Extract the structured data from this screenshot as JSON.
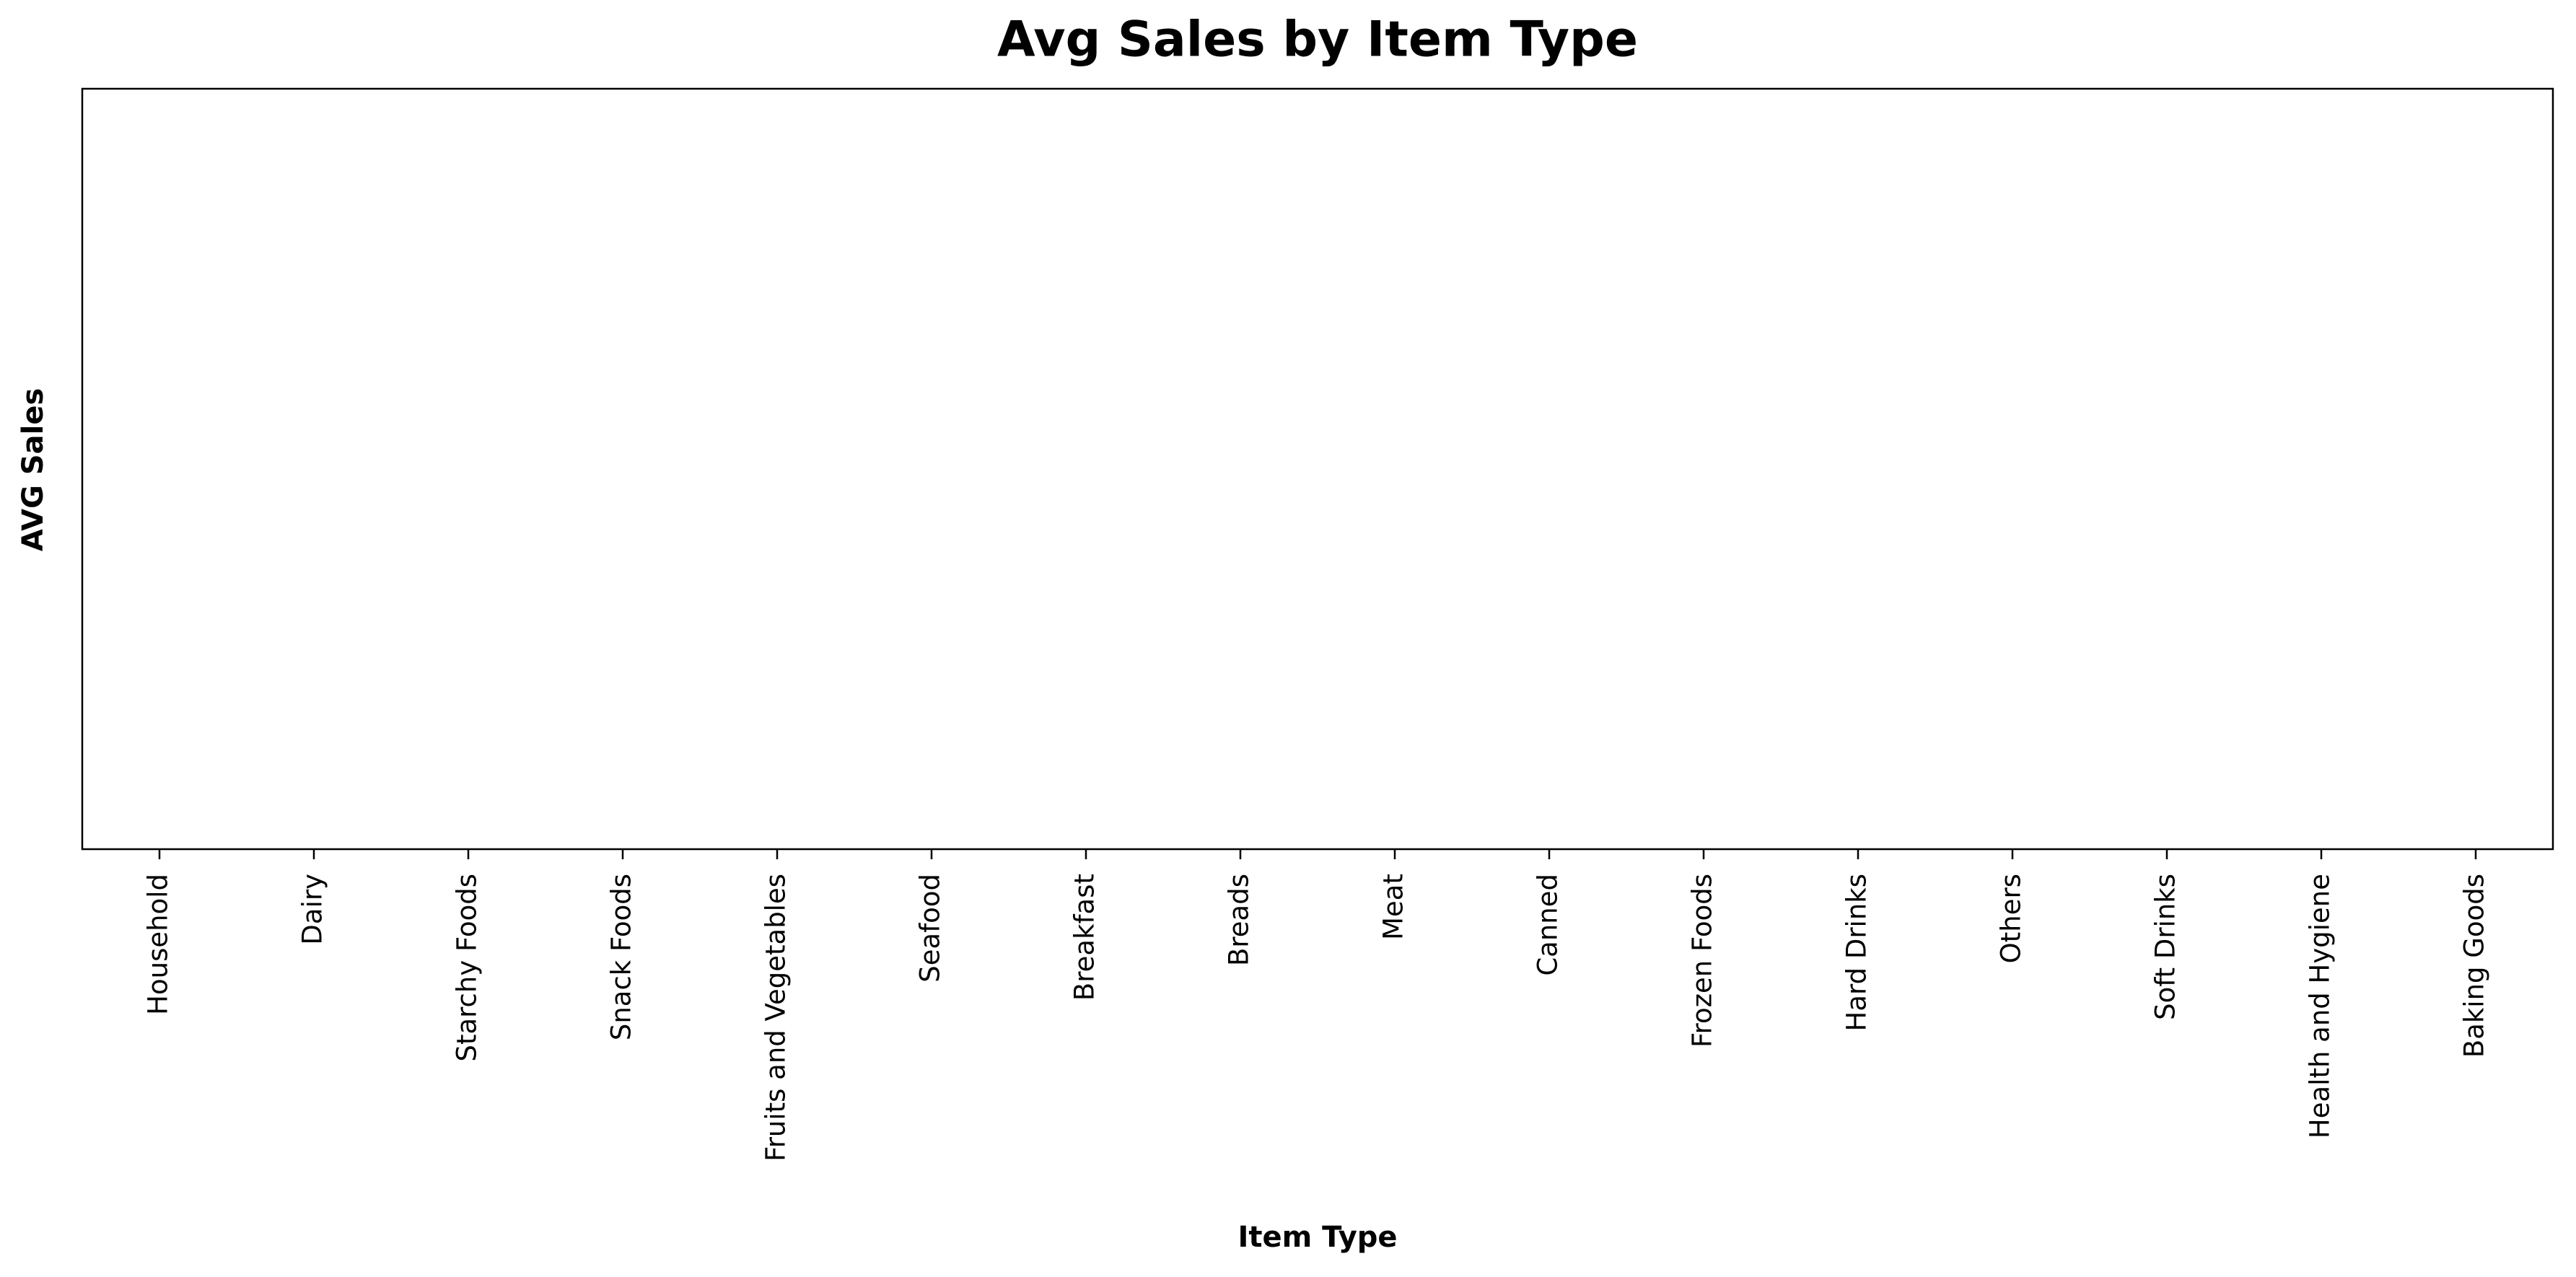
{
  "chart_data": {
    "type": "bar",
    "title": "Avg Sales by Item Type",
    "xlabel": "Item Type",
    "ylabel": "AVG Sales",
    "categories": [
      "Household",
      "Dairy",
      "Starchy Foods",
      "Snack Foods",
      "Fruits and Vegetables",
      "Seafood",
      "Breakfast",
      "Breads",
      "Meat",
      "Canned",
      "Frozen Foods",
      "Hard Drinks",
      "Others",
      "Soft Drinks",
      "Health and Hygiene",
      "Baking Goods"
    ]
  }
}
